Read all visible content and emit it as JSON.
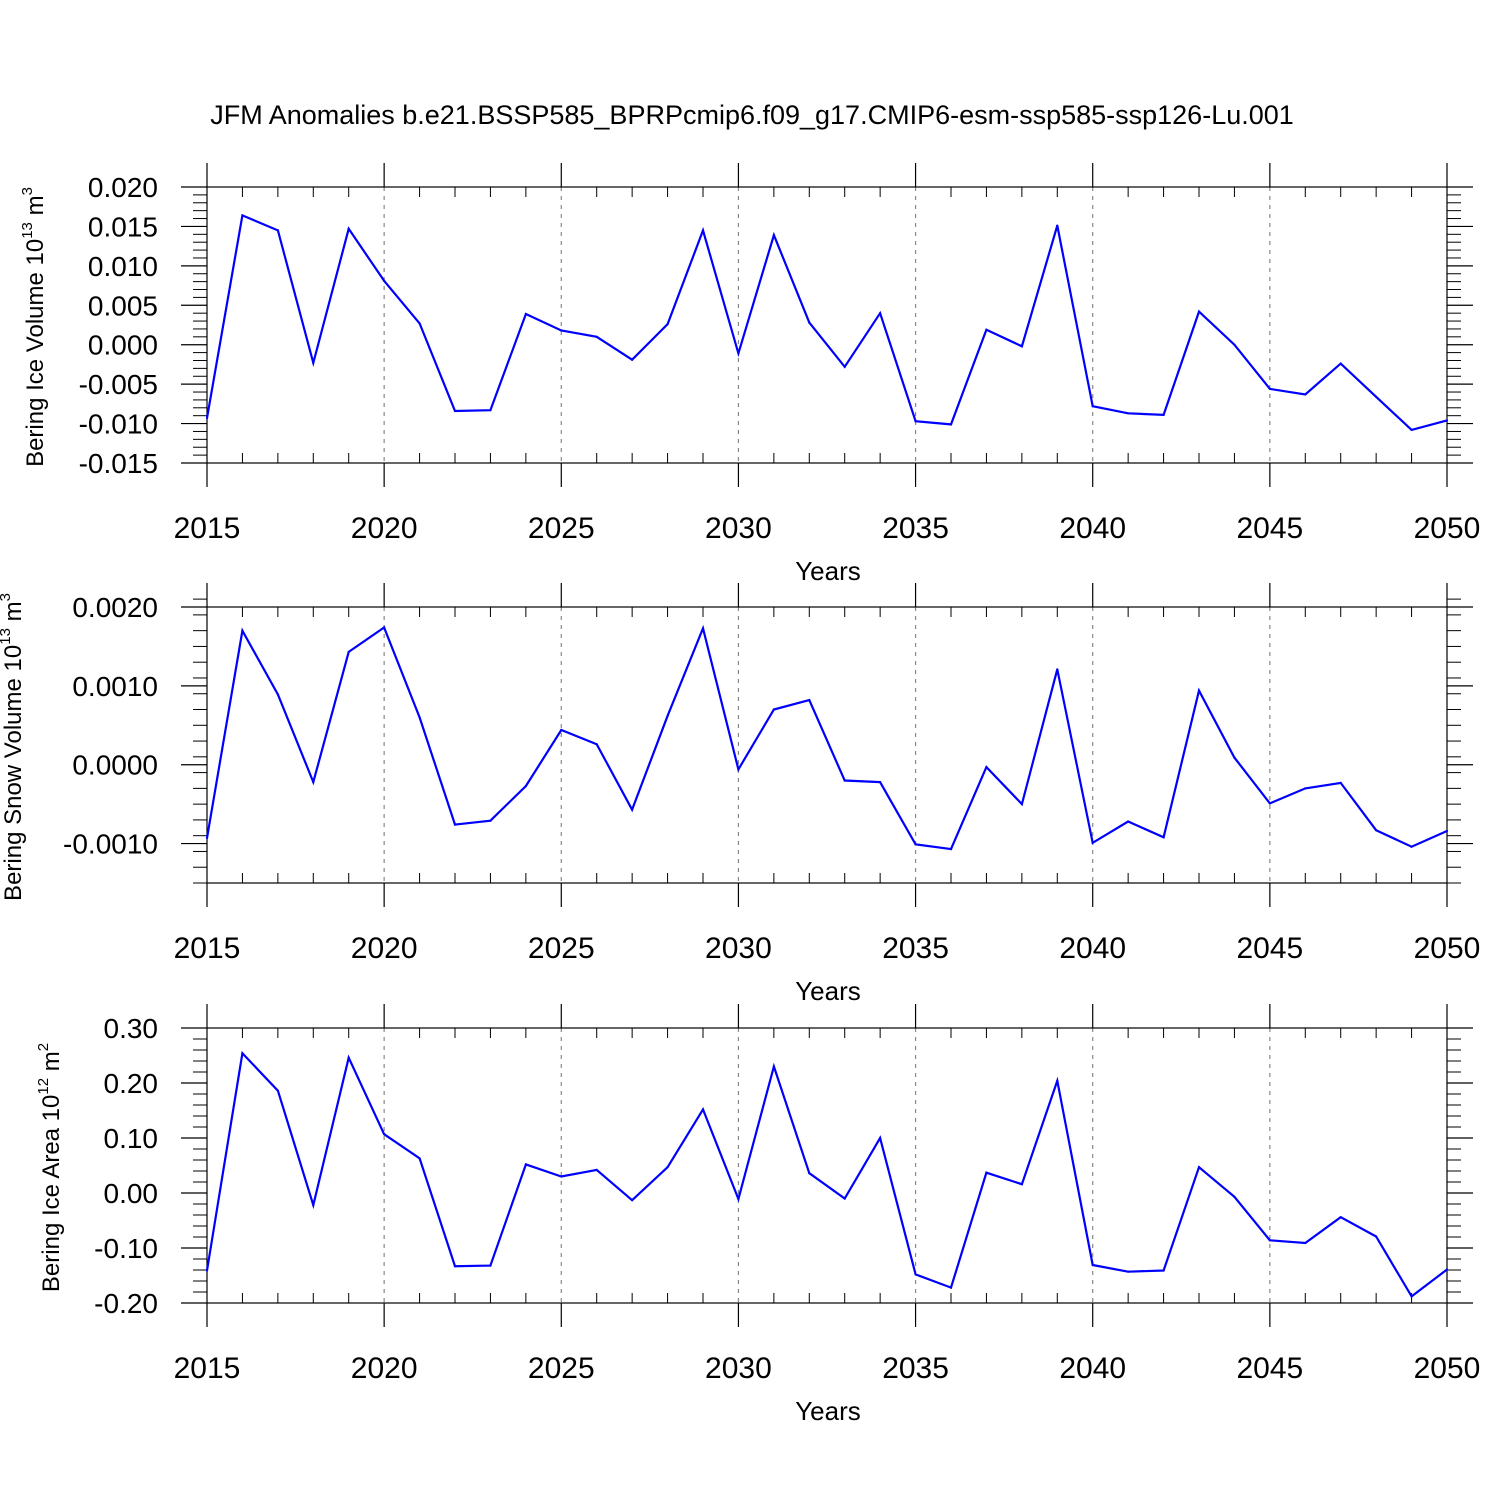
{
  "chart_data": {
    "title": "JFM Anomalies b.e21.BSSP585_BPRPcmip6.f09_g17.CMIP6-esm-ssp585-ssp126-Lu.001",
    "line_color": "#0000ff",
    "x": [
      2015,
      2016,
      2017,
      2018,
      2019,
      2020,
      2021,
      2022,
      2023,
      2024,
      2025,
      2026,
      2027,
      2028,
      2029,
      2030,
      2031,
      2032,
      2033,
      2034,
      2035,
      2036,
      2037,
      2038,
      2039,
      2040,
      2041,
      2042,
      2043,
      2044,
      2045,
      2046,
      2047,
      2048,
      2049,
      2050
    ],
    "panels": [
      {
        "type": "line",
        "ylabel": "Bering Ice Volume 10",
        "ylabel_exp": "13",
        "ylabel_unit": "m",
        "ylabel_unit_exp": "3",
        "xlabel": "Years",
        "xlim": [
          2015,
          2050
        ],
        "ylim": [
          -0.015,
          0.02
        ],
        "yticks": [
          -0.015,
          -0.01,
          -0.005,
          0.0,
          0.005,
          0.01,
          0.015,
          0.02
        ],
        "ytick_labels": [
          "-0.015",
          "-0.010",
          "-0.005",
          "0.000",
          "0.005",
          "0.010",
          "0.015",
          "0.020"
        ],
        "xticks": [
          2015,
          2020,
          2025,
          2030,
          2035,
          2040,
          2045,
          2050
        ],
        "xtick_labels": [
          "2015",
          "2020",
          "2025",
          "2030",
          "2035",
          "2040",
          "2045",
          "2050"
        ],
        "values": [
          -0.0093,
          0.0164,
          0.0145,
          -0.0023,
          0.0147,
          0.0081,
          0.0027,
          -0.0084,
          -0.0083,
          0.0039,
          0.0018,
          0.001,
          -0.0019,
          0.0026,
          0.0145,
          -0.0011,
          0.0139,
          0.0028,
          -0.0028,
          0.004,
          -0.0097,
          -0.0101,
          0.0019,
          -0.0002,
          0.0151,
          -0.0078,
          -0.0087,
          -0.0089,
          0.0042,
          0.0,
          -0.0056,
          -0.0063,
          -0.0024,
          -0.0066,
          -0.0108,
          -0.0096
        ]
      },
      {
        "type": "line",
        "ylabel": "Bering Snow Volume 10",
        "ylabel_exp": "13",
        "ylabel_unit": "m",
        "ylabel_unit_exp": "3",
        "xlabel": "Years",
        "xlim": [
          2015,
          2050
        ],
        "ylim": [
          -0.0015,
          0.002
        ],
        "yticks": [
          -0.001,
          0.0,
          0.001,
          0.002
        ],
        "ytick_labels": [
          "-0.0010",
          "0.0000",
          "0.0010",
          "0.0020"
        ],
        "xticks": [
          2015,
          2020,
          2025,
          2030,
          2035,
          2040,
          2045,
          2050
        ],
        "xtick_labels": [
          "2015",
          "2020",
          "2025",
          "2030",
          "2035",
          "2040",
          "2045",
          "2050"
        ],
        "values": [
          -0.00093,
          0.0017,
          0.00089,
          -0.00022,
          0.00143,
          0.00174,
          0.0006,
          -0.00076,
          -0.00071,
          -0.00027,
          0.00044,
          0.00026,
          -0.00057,
          0.00062,
          0.00173,
          -6e-05,
          0.0007,
          0.00082,
          -0.0002,
          -0.00022,
          -0.00101,
          -0.00107,
          -3e-05,
          -0.0005,
          0.00121,
          -0.00099,
          -0.00072,
          -0.00092,
          0.00094,
          9e-05,
          -0.00049,
          -0.0003,
          -0.00023,
          -0.00083,
          -0.00104,
          -0.00084
        ]
      },
      {
        "type": "line",
        "ylabel": "Bering Ice Area 10",
        "ylabel_exp": "12",
        "ylabel_unit": "m",
        "ylabel_unit_exp": "2",
        "xlabel": "Years",
        "xlim": [
          2015,
          2050
        ],
        "ylim": [
          -0.2,
          0.3
        ],
        "yticks": [
          -0.2,
          -0.1,
          0.0,
          0.1,
          0.2,
          0.3
        ],
        "ytick_labels": [
          "-0.20",
          "-0.10",
          "0.00",
          "0.10",
          "0.20",
          "0.30"
        ],
        "xticks": [
          2015,
          2020,
          2025,
          2030,
          2035,
          2040,
          2045,
          2050
        ],
        "xtick_labels": [
          "2015",
          "2020",
          "2025",
          "2030",
          "2035",
          "2040",
          "2045",
          "2050"
        ],
        "values": [
          -0.141,
          0.254,
          0.186,
          -0.022,
          0.246,
          0.107,
          0.063,
          -0.133,
          -0.132,
          0.052,
          0.03,
          0.042,
          -0.013,
          0.047,
          0.152,
          -0.011,
          0.23,
          0.036,
          -0.01,
          0.1,
          -0.148,
          -0.172,
          0.037,
          0.016,
          0.204,
          -0.131,
          -0.143,
          -0.141,
          0.047,
          -0.007,
          -0.086,
          -0.091,
          -0.044,
          -0.079,
          -0.188,
          -0.139
        ]
      }
    ]
  }
}
